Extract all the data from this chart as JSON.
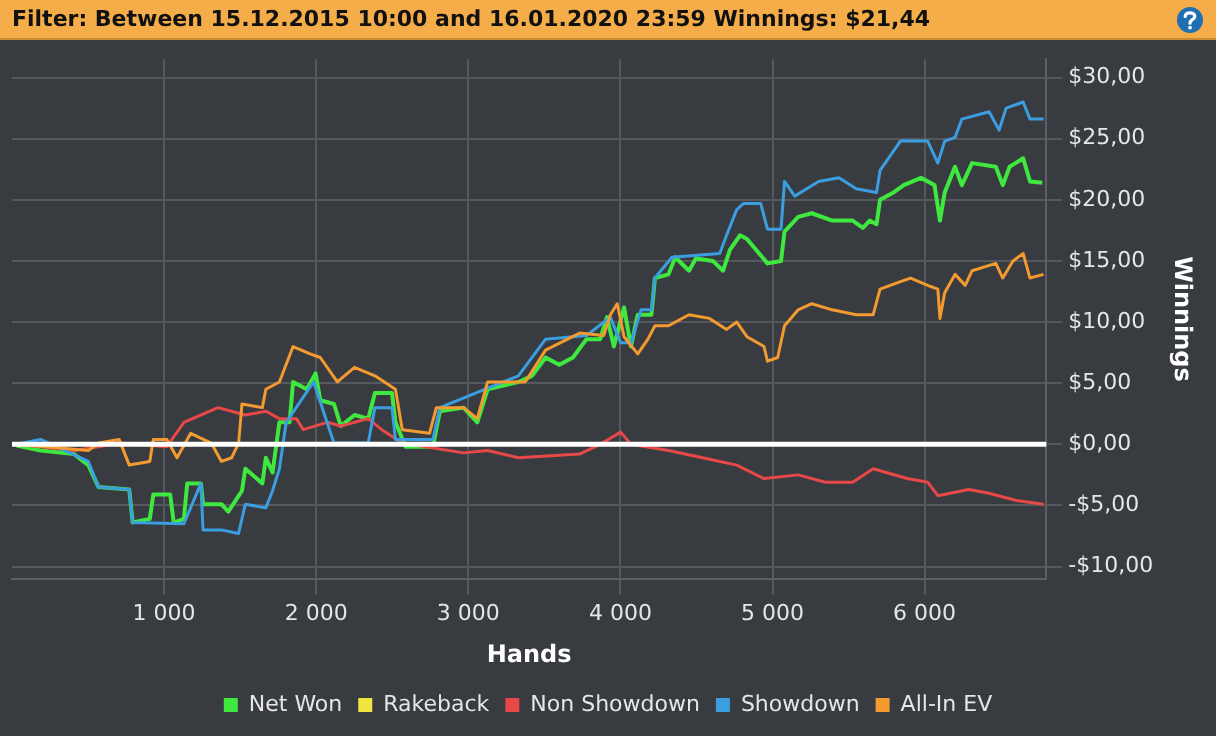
{
  "chart_data": {
    "type": "line",
    "title": "Filter: Between 15.12.2015 10:00 and 16.01.2020 23:59 Winnings: $21,44",
    "xlabel": "Hands",
    "ylabel": "Winnings",
    "xlim": [
      0,
      6800
    ],
    "xticks": [
      {
        "value": 1000,
        "label": "1 000"
      },
      {
        "value": 2000,
        "label": "2 000"
      },
      {
        "value": 3000,
        "label": "3 000"
      },
      {
        "value": 4000,
        "label": "4 000"
      },
      {
        "value": 5000,
        "label": "5 000"
      },
      {
        "value": 6000,
        "label": "6 000"
      }
    ],
    "ylim": [
      -11,
      31.5
    ],
    "yticks": [
      {
        "value": -10,
        "label": "-$10,00"
      },
      {
        "value": -5,
        "label": "-$5,00"
      },
      {
        "value": 0,
        "label": "$0,00"
      },
      {
        "value": 5,
        "label": "$5,00"
      },
      {
        "value": 10,
        "label": "$10,00"
      },
      {
        "value": 15,
        "label": "$15,00"
      },
      {
        "value": 20,
        "label": "$20,00"
      },
      {
        "value": 25,
        "label": "$25,00"
      },
      {
        "value": 30,
        "label": "$30,00"
      }
    ],
    "grid": true,
    "legend": "bottom",
    "marker": "none",
    "line_style": "solid",
    "ref_lines": [
      {
        "axis": "y",
        "value": 0,
        "color": "#ffffff"
      }
    ],
    "series": [
      {
        "name": "Net Won",
        "color": "#3ee83e",
        "x": [
          30,
          188,
          408,
          502,
          569,
          771,
          793,
          906,
          929,
          1040,
          1063,
          1130,
          1152,
          1242,
          1256,
          1377,
          1422,
          1512,
          1534,
          1646,
          1669,
          1713,
          1758,
          1825,
          1848,
          1938,
          1996,
          2027,
          2117,
          2162,
          2252,
          2342,
          2386,
          2498,
          2521,
          2588,
          2767,
          2813,
          2969,
          3059,
          3127,
          3329,
          3419,
          3508,
          3598,
          3688,
          3777,
          3867,
          3912,
          3957,
          4024,
          4069,
          4114,
          4204,
          4227,
          4316,
          4361,
          4451,
          4496,
          4608,
          4675,
          4720,
          4787,
          4832,
          4967,
          5056,
          5079,
          5169,
          5258,
          5393,
          5527,
          5594,
          5639,
          5684,
          5707,
          5796,
          5863,
          5976,
          6065,
          6101,
          6132,
          6200,
          6245,
          6312,
          6468,
          6514,
          6559,
          6648,
          6693,
          6774
        ],
        "values": [
          -0.1,
          -0.5,
          -0.8,
          -1.7,
          -3.5,
          -3.7,
          -6.4,
          -6.1,
          -4.1,
          -4.1,
          -6.4,
          -6.1,
          -3.2,
          -3.2,
          -4.9,
          -4.9,
          -5.5,
          -3.8,
          -2.0,
          -3.2,
          -1.1,
          -2.3,
          1.8,
          1.8,
          5.1,
          4.5,
          5.8,
          3.6,
          3.3,
          1.5,
          2.4,
          2.1,
          4.2,
          4.2,
          1.8,
          -0.2,
          -0.2,
          2.7,
          3.0,
          1.8,
          4.5,
          5.1,
          5.6,
          7.1,
          6.5,
          7.1,
          8.6,
          8.6,
          10.4,
          8.0,
          11.2,
          8.0,
          10.6,
          10.6,
          13.6,
          13.9,
          15.3,
          14.2,
          15.2,
          15.0,
          14.2,
          15.9,
          17.1,
          16.8,
          14.8,
          15.0,
          17.4,
          18.6,
          18.9,
          18.3,
          18.3,
          17.7,
          18.3,
          18.0,
          20.0,
          20.6,
          21.2,
          21.8,
          21.2,
          18.3,
          20.6,
          22.7,
          21.2,
          23.0,
          22.7,
          21.2,
          22.7,
          23.4,
          21.5,
          21.4
        ]
      },
      {
        "name": "Rakeback",
        "color": "#f0e640"
      },
      {
        "name": "Non Showdown",
        "color": "#e84848",
        "x": [
          30,
          408,
          569,
          704,
          1018,
          1130,
          1354,
          1534,
          1669,
          1758,
          1870,
          1915,
          2072,
          2162,
          2342,
          2431,
          2566,
          2969,
          3127,
          3329,
          3732,
          3867,
          4002,
          4069,
          4316,
          4541,
          4765,
          4944,
          5169,
          5348,
          5527,
          5662,
          5886,
          6020,
          6087,
          6290,
          6424,
          6603,
          6782
        ],
        "values": [
          0,
          -0.5,
          -0.2,
          0.1,
          -0.2,
          1.8,
          3.0,
          2.4,
          2.7,
          2.1,
          2.1,
          1.2,
          1.8,
          1.5,
          2.1,
          1.2,
          0.1,
          -0.7,
          -0.5,
          -1.1,
          -0.8,
          0,
          1.0,
          0,
          -0.5,
          -1.1,
          -1.7,
          -2.8,
          -2.5,
          -3.1,
          -3.1,
          -2.0,
          -2.8,
          -3.1,
          -4.2,
          -3.7,
          -4.0,
          -4.6,
          -4.9
        ]
      },
      {
        "name": "Showdown",
        "color": "#3a9ee0",
        "x": [
          30,
          188,
          502,
          569,
          771,
          793,
          1130,
          1242,
          1256,
          1377,
          1489,
          1534,
          1669,
          1713,
          1758,
          1803,
          1983,
          2117,
          2342,
          2386,
          2498,
          2521,
          2767,
          2813,
          3329,
          3508,
          3777,
          3934,
          4002,
          4069,
          4136,
          4204,
          4227,
          4339,
          4653,
          4698,
          4765,
          4810,
          4922,
          4967,
          5056,
          5079,
          5146,
          5303,
          5437,
          5550,
          5684,
          5707,
          5841,
          6020,
          6087,
          6132,
          6200,
          6245,
          6424,
          6490,
          6536,
          6648,
          6693,
          6782
        ],
        "values": [
          0,
          0.4,
          -1.4,
          -3.5,
          -3.7,
          -6.4,
          -6.5,
          -3.2,
          -7.0,
          -7.0,
          -7.3,
          -4.9,
          -5.2,
          -3.8,
          -2.0,
          1.8,
          5.1,
          0.1,
          0.1,
          3.0,
          3.0,
          0.4,
          0.4,
          3.0,
          5.6,
          8.6,
          8.9,
          10.4,
          8.3,
          8.3,
          11.0,
          11.0,
          13.6,
          15.3,
          15.6,
          17.1,
          19.2,
          19.7,
          19.7,
          17.6,
          17.6,
          21.5,
          20.3,
          21.5,
          21.8,
          20.9,
          20.6,
          22.4,
          24.8,
          24.8,
          23.0,
          24.8,
          25.1,
          26.6,
          27.2,
          25.7,
          27.5,
          28.0,
          26.6,
          26.6
        ]
      },
      {
        "name": "All-In EV",
        "color": "#f39a30",
        "x": [
          30,
          502,
          569,
          704,
          771,
          906,
          929,
          1018,
          1085,
          1175,
          1310,
          1377,
          1444,
          1490,
          1512,
          1646,
          1669,
          1758,
          1848,
          1960,
          2027,
          2139,
          2252,
          2386,
          2521,
          2566,
          2745,
          2790,
          2969,
          3059,
          3127,
          3374,
          3508,
          3732,
          3890,
          3934,
          3979,
          4024,
          4114,
          4181,
          4227,
          4316,
          4451,
          4586,
          4698,
          4765,
          4832,
          4944,
          4967,
          5034,
          5079,
          5169,
          5258,
          5393,
          5550,
          5662,
          5707,
          5841,
          5908,
          6020,
          6087,
          6101,
          6132,
          6200,
          6267,
          6312,
          6468,
          6514,
          6581,
          6648,
          6693,
          6782
        ],
        "values": [
          0,
          -0.5,
          0.1,
          0.4,
          -1.7,
          -1.4,
          0.4,
          0.4,
          -1.1,
          0.9,
          0.1,
          -1.4,
          -1.1,
          0.1,
          3.3,
          3.0,
          4.5,
          5.1,
          8.0,
          7.4,
          7.1,
          5.1,
          6.3,
          5.6,
          4.5,
          1.2,
          0.9,
          3.0,
          3.0,
          2.1,
          5.1,
          5.1,
          7.7,
          9.1,
          8.9,
          10.6,
          11.5,
          8.8,
          7.4,
          8.6,
          9.7,
          9.7,
          10.6,
          10.3,
          9.4,
          10.0,
          8.8,
          8.0,
          6.8,
          7.1,
          9.7,
          11.0,
          11.5,
          11.0,
          10.6,
          10.6,
          12.7,
          13.3,
          13.6,
          13.0,
          12.7,
          10.3,
          12.4,
          13.9,
          13.0,
          14.2,
          14.8,
          13.6,
          15.0,
          15.6,
          13.6,
          13.9
        ]
      }
    ]
  }
}
